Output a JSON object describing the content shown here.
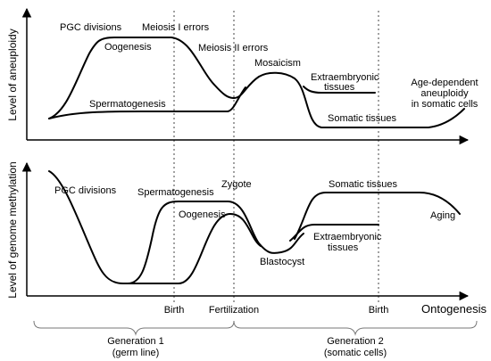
{
  "top_panel": {
    "y_axis_label": "Level of aneuploidy",
    "labels": {
      "pgc_divisions": "PGC divisions",
      "meiosis_i": "Meiosis I errors",
      "oogenesis": "Oogenesis",
      "meiosis_ii": "Meiosis II errors",
      "mosaicism": "Mosaicism",
      "extraembryonic_1": "Extraembryonic",
      "extraembryonic_2": "tissues",
      "age_1": "Age-dependent",
      "age_2": "aneuploidy",
      "age_3": "in somatic cells",
      "spermatogenesis": "Spermatogenesis",
      "somatic_tissues": "Somatic tissues"
    }
  },
  "bottom_panel": {
    "y_axis_label": "Level of genome methylation",
    "labels": {
      "pgc_divisions": "PGC divisions",
      "spermatogenesis": "Spermatogenesis",
      "zygote": "Zygote",
      "somatic_tissues": "Somatic tissues",
      "oogenesis": "Oogenesis",
      "aging": "Aging",
      "extraembryonic_1": "Extraembryonic",
      "extraembryonic_2": "tissues",
      "blastocyst": "Blastocyst"
    }
  },
  "x_axis": {
    "birth_1": "Birth",
    "fertilization": "Fertilization",
    "birth_2": "Birth",
    "ontogenesis": "Ontogenesis"
  },
  "generations": {
    "gen1_title": "Generation 1",
    "gen1_sub": "(germ line)",
    "gen2_title": "Generation 2",
    "gen2_sub": "(somatic cells)"
  }
}
